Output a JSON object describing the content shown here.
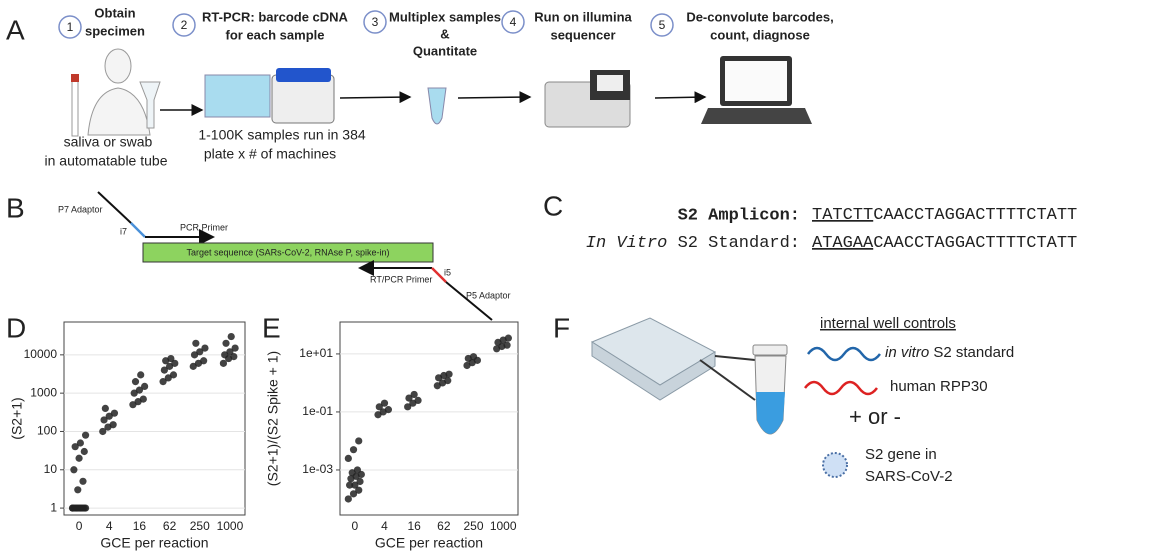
{
  "panels": {
    "a": "A",
    "b": "B",
    "c": "C",
    "d": "D",
    "e": "E",
    "f": "F"
  },
  "workflow": {
    "steps": [
      {
        "number": 1,
        "lines": [
          "Obtain",
          "specimen"
        ]
      },
      {
        "number": 2,
        "lines": [
          "RT-PCR: barcode cDNA",
          "for each sample"
        ]
      },
      {
        "number": 3,
        "lines": [
          "Multiplex samples",
          "&",
          "Quantitate"
        ]
      },
      {
        "number": 4,
        "lines": [
          "Run on illumina",
          "sequencer"
        ]
      },
      {
        "number": 5,
        "lines": [
          "De-convolute barcodes,",
          "count,  diagnose"
        ]
      }
    ],
    "notes": [
      [
        "saliva or  swab",
        "in automatable tube"
      ],
      [
        "1-100K samples run in 384",
        "plate x # of machines"
      ]
    ]
  },
  "amplicon": {
    "p7": "P7 Adaptor",
    "i7": "i7",
    "pcr_primer": "PCR Primer",
    "target": "Target sequence (SARs-CoV-2, RNAse P, spike-in)",
    "rt_primer": "RT/PCR Primer",
    "i5": "i5",
    "p5": "P5 Adaptor"
  },
  "sequences": [
    {
      "label": "S2 Amplicon:",
      "barcode": "TATCTT",
      "rest": "CAACCTAGGACTTTTCTATT"
    },
    {
      "label_italic": "In Vitro",
      "label": " S2 Standard:",
      "barcode": "ATAGAA",
      "rest": "CAACCTAGGACTTTTCTATT"
    }
  ],
  "controls": {
    "title": "internal well controls",
    "or": "+ or -",
    "items": [
      {
        "italic": "in vitro",
        "text": " S2 standard"
      },
      {
        "text": "human RPP30"
      },
      {
        "lines": [
          "S2 gene in",
          "SARS-CoV-2"
        ]
      }
    ]
  },
  "chart_data": [
    {
      "type": "strip",
      "xlabel": "GCE per reaction",
      "ylabel": "(S2+1)",
      "color": "#222222",
      "log_y": true,
      "grid": true,
      "categories": [
        "0",
        "4",
        "16",
        "62",
        "250",
        "1000"
      ],
      "values": [
        [
          1,
          1,
          1,
          1,
          1,
          1,
          1,
          1,
          1,
          1,
          1,
          1,
          3,
          5,
          10,
          20,
          30,
          40,
          50,
          80
        ],
        [
          100,
          130,
          150,
          200,
          250,
          300,
          400
        ],
        [
          500,
          600,
          700,
          1000,
          1200,
          1500,
          2000,
          3000
        ],
        [
          2000,
          2500,
          3000,
          4000,
          5000,
          6000,
          7000,
          8000
        ],
        [
          5000,
          6000,
          7000,
          10000,
          12000,
          15000,
          20000
        ],
        [
          6000,
          8000,
          9000,
          10000,
          12000,
          15000,
          20000,
          30000
        ]
      ],
      "ylim": [
        0.66,
        72000
      ],
      "yticks": [
        1,
        10,
        100,
        1000,
        10000
      ]
    },
    {
      "type": "strip",
      "xlabel": "GCE per reaction",
      "ylabel": "(S2+1)/(S2 Spike + 1)",
      "color": "#222222",
      "log_y": true,
      "grid": true,
      "categories": [
        "0",
        "4",
        "16",
        "62",
        "250",
        "1000"
      ],
      "values": [
        [
          0.0001,
          0.00015,
          0.0002,
          0.0003,
          0.0003,
          0.0004,
          0.0005,
          0.0006,
          0.0007,
          0.0008,
          0.001,
          0.0025,
          0.005,
          0.01
        ],
        [
          0.08,
          0.1,
          0.12,
          0.15,
          0.2
        ],
        [
          0.15,
          0.2,
          0.25,
          0.3,
          0.4
        ],
        [
          0.8,
          1,
          1.2,
          1.5,
          1.8,
          2
        ],
        [
          4,
          5,
          6,
          7,
          8
        ],
        [
          15,
          18,
          20,
          25,
          30,
          35
        ]
      ],
      "ylim": [
        2.8e-05,
        126
      ],
      "yticks": [
        {
          "value": 0.001,
          "label": "1e-03"
        },
        {
          "value": 0.1,
          "label": "1e-01"
        },
        {
          "value": 10,
          "label": "1e+01"
        }
      ]
    }
  ]
}
